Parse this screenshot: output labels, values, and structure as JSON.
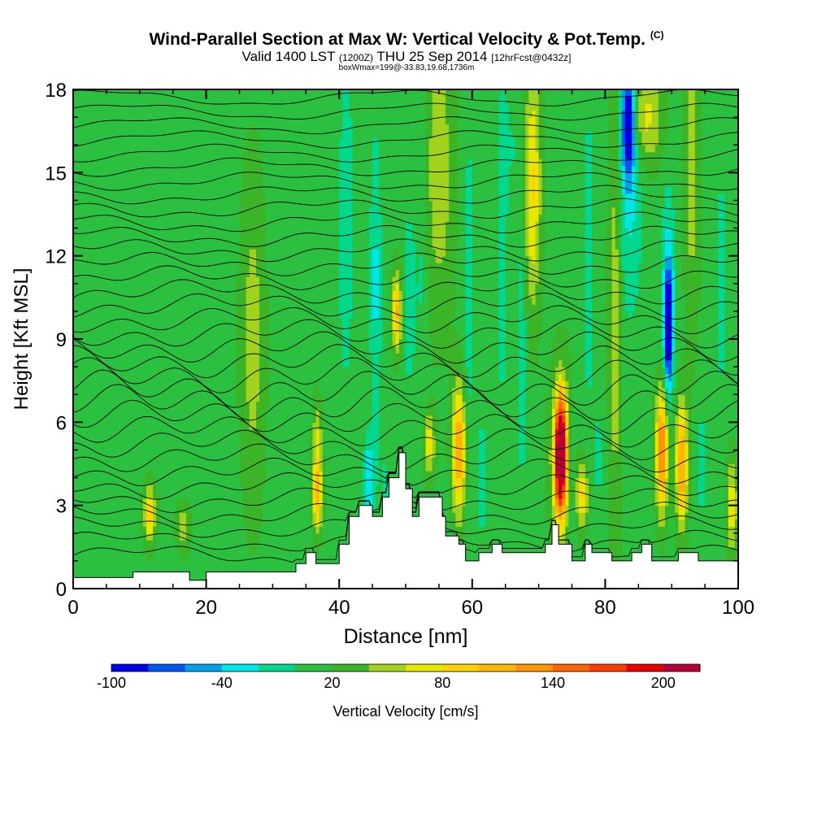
{
  "title": {
    "main": "Wind-Parallel Section at Max W: Vertical Velocity & Pot.Temp.",
    "main_suffix": "(C)",
    "valid_a": "Valid 1400 LST",
    "valid_b": "(1200Z)",
    "valid_c": "THU 25 Sep 2014",
    "valid_d": "[12hrFcst@0432z]",
    "box": "boxWmax=199@-33.83,19.68,1736m"
  },
  "chart_data": {
    "type": "heatmap",
    "xlabel": "Distance [nm]",
    "ylabel": "Height [Kft MSL]",
    "xlim": [
      0,
      100
    ],
    "ylim": [
      0,
      18
    ],
    "x_ticks": [
      0,
      20,
      40,
      60,
      80,
      100
    ],
    "y_ticks": [
      0,
      3,
      6,
      9,
      12,
      15,
      18
    ],
    "colorbar": {
      "label": "Vertical Velocity [cm/s]",
      "tick_labels": [
        "-100",
        "-40",
        "20",
        "80",
        "140",
        "200"
      ],
      "tick_values": [
        -100,
        -40,
        20,
        80,
        140,
        200
      ],
      "range": [
        -100,
        220
      ],
      "colors": [
        "#0000e6",
        "#0055f5",
        "#00a0f0",
        "#00e6e6",
        "#00d890",
        "#2cc040",
        "#3cb428",
        "#a0d21e",
        "#e6e600",
        "#ffd200",
        "#ffb400",
        "#ff9600",
        "#ff6400",
        "#ff3c00",
        "#e60000",
        "#b40032"
      ]
    },
    "background_w": 15,
    "terrain_profile": [
      {
        "x": 0,
        "h": 0.4
      },
      {
        "x": 9,
        "h": 0.4
      },
      {
        "x": 9,
        "h": 0.6
      },
      {
        "x": 17.5,
        "h": 0.6
      },
      {
        "x": 17.5,
        "h": 0.3
      },
      {
        "x": 20,
        "h": 0.3
      },
      {
        "x": 20,
        "h": 0.6
      },
      {
        "x": 33.5,
        "h": 0.6
      },
      {
        "x": 33.5,
        "h": 0.9
      },
      {
        "x": 35,
        "h": 0.9
      },
      {
        "x": 35,
        "h": 1.3
      },
      {
        "x": 36.5,
        "h": 1.3
      },
      {
        "x": 36.5,
        "h": 0.9
      },
      {
        "x": 40,
        "h": 0.9
      },
      {
        "x": 40,
        "h": 1.6
      },
      {
        "x": 41.5,
        "h": 1.6
      },
      {
        "x": 41.5,
        "h": 2.6
      },
      {
        "x": 43,
        "h": 2.6
      },
      {
        "x": 43,
        "h": 3.0
      },
      {
        "x": 45,
        "h": 3.0
      },
      {
        "x": 45,
        "h": 2.6
      },
      {
        "x": 46.5,
        "h": 2.6
      },
      {
        "x": 46.5,
        "h": 3.3
      },
      {
        "x": 47.5,
        "h": 3.3
      },
      {
        "x": 47.5,
        "h": 4.0
      },
      {
        "x": 49,
        "h": 4.0
      },
      {
        "x": 49,
        "h": 4.9
      },
      {
        "x": 50,
        "h": 4.9
      },
      {
        "x": 50,
        "h": 3.6
      },
      {
        "x": 51,
        "h": 3.6
      },
      {
        "x": 51,
        "h": 2.6
      },
      {
        "x": 52,
        "h": 2.6
      },
      {
        "x": 52,
        "h": 3.3
      },
      {
        "x": 55.5,
        "h": 3.3
      },
      {
        "x": 55.5,
        "h": 2.6
      },
      {
        "x": 56,
        "h": 2.6
      },
      {
        "x": 56,
        "h": 1.9
      },
      {
        "x": 58,
        "h": 1.9
      },
      {
        "x": 58,
        "h": 1.6
      },
      {
        "x": 59,
        "h": 1.6
      },
      {
        "x": 59,
        "h": 1.0
      },
      {
        "x": 61,
        "h": 1.0
      },
      {
        "x": 61,
        "h": 1.3
      },
      {
        "x": 63,
        "h": 1.3
      },
      {
        "x": 63,
        "h": 1.6
      },
      {
        "x": 64.5,
        "h": 1.6
      },
      {
        "x": 64.5,
        "h": 1.3
      },
      {
        "x": 71,
        "h": 1.3
      },
      {
        "x": 71,
        "h": 1.6
      },
      {
        "x": 72,
        "h": 1.6
      },
      {
        "x": 72,
        "h": 2.3
      },
      {
        "x": 73,
        "h": 2.3
      },
      {
        "x": 73,
        "h": 1.6
      },
      {
        "x": 75,
        "h": 1.6
      },
      {
        "x": 75,
        "h": 1.0
      },
      {
        "x": 77,
        "h": 1.0
      },
      {
        "x": 77,
        "h": 1.6
      },
      {
        "x": 78,
        "h": 1.6
      },
      {
        "x": 78,
        "h": 1.3
      },
      {
        "x": 81,
        "h": 1.3
      },
      {
        "x": 81,
        "h": 1.0
      },
      {
        "x": 84,
        "h": 1.0
      },
      {
        "x": 84,
        "h": 1.3
      },
      {
        "x": 85.5,
        "h": 1.3
      },
      {
        "x": 85.5,
        "h": 1.6
      },
      {
        "x": 87,
        "h": 1.6
      },
      {
        "x": 87,
        "h": 1.0
      },
      {
        "x": 91,
        "h": 1.0
      },
      {
        "x": 91,
        "h": 1.3
      },
      {
        "x": 94,
        "h": 1.3
      },
      {
        "x": 94,
        "h": 1.0
      },
      {
        "x": 100,
        "h": 1.0
      }
    ],
    "velocity_features": [
      {
        "x": 11.5,
        "y": 2.7,
        "sx": 0.6,
        "sy": 0.7,
        "w": 75
      },
      {
        "x": 16.5,
        "y": 2.2,
        "sx": 0.7,
        "sy": 0.6,
        "w": 35
      },
      {
        "x": 21.5,
        "y": 1.6,
        "sx": 1.5,
        "sy": 0.5,
        "w": -15
      },
      {
        "x": 27,
        "y": 9.0,
        "sx": 1.2,
        "sy": 4.0,
        "w": 35
      },
      {
        "x": 34.5,
        "y": 11.5,
        "sx": 0.9,
        "sy": 5.0,
        "w": -15
      },
      {
        "x": 36.7,
        "y": 3.4,
        "sx": 0.5,
        "sy": 0.9,
        "w": 95
      },
      {
        "x": 36.7,
        "y": 5.5,
        "sx": 0.5,
        "sy": 1.0,
        "w": 45
      },
      {
        "x": 38,
        "y": 9.5,
        "sx": 0.8,
        "sy": 3.5,
        "w": -5
      },
      {
        "x": 41,
        "y": 13.0,
        "sx": 0.8,
        "sy": 4.5,
        "w": -30
      },
      {
        "x": 43,
        "y": 15.5,
        "sx": 0.7,
        "sy": 2.5,
        "w": -10
      },
      {
        "x": 44.5,
        "y": 4.0,
        "sx": 0.6,
        "sy": 1.0,
        "w": -55
      },
      {
        "x": 47,
        "y": 3.5,
        "sx": 0.6,
        "sy": 1.2,
        "w": -20
      },
      {
        "x": 48.7,
        "y": 10.0,
        "sx": 0.5,
        "sy": 1.0,
        "w": 90
      },
      {
        "x": 45.5,
        "y": 11.0,
        "sx": 0.6,
        "sy": 4.0,
        "w": -40
      },
      {
        "x": 50.5,
        "y": 10.5,
        "sx": 0.8,
        "sy": 2.5,
        "w": -30
      },
      {
        "x": 52.5,
        "y": 13.0,
        "sx": 0.6,
        "sy": 4.5,
        "w": -20
      },
      {
        "x": 53.5,
        "y": 5.2,
        "sx": 0.6,
        "sy": 0.8,
        "w": 60
      },
      {
        "x": 55,
        "y": 15.0,
        "sx": 1.5,
        "sy": 3.5,
        "w": 40
      },
      {
        "x": 58,
        "y": 5.0,
        "sx": 0.7,
        "sy": 1.6,
        "w": 110
      },
      {
        "x": 59.5,
        "y": 11.0,
        "sx": 0.6,
        "sy": 5.0,
        "w": -25
      },
      {
        "x": 61.5,
        "y": 4.0,
        "sx": 0.6,
        "sy": 1.5,
        "w": -30
      },
      {
        "x": 64.5,
        "y": 12.0,
        "sx": 0.5,
        "sy": 5.0,
        "w": -25
      },
      {
        "x": 66,
        "y": 16.0,
        "sx": 1.2,
        "sy": 2.5,
        "w": -15
      },
      {
        "x": 67.5,
        "y": 9.0,
        "sx": 0.6,
        "sy": 5.0,
        "w": -25
      },
      {
        "x": 69,
        "y": 14.5,
        "sx": 0.9,
        "sy": 3.0,
        "w": 70
      },
      {
        "x": 73.3,
        "y": 4.8,
        "sx": 0.6,
        "sy": 1.4,
        "w": 240
      },
      {
        "x": 73.3,
        "y": 4.8,
        "sx": 1.1,
        "sy": 2.2,
        "w": 45
      },
      {
        "x": 75,
        "y": 3.5,
        "sx": 0.6,
        "sy": 1.5,
        "w": -20
      },
      {
        "x": 76.5,
        "y": 3.4,
        "sx": 0.7,
        "sy": 0.8,
        "w": 75
      },
      {
        "x": 77.5,
        "y": 12.0,
        "sx": 0.6,
        "sy": 5.0,
        "w": -25
      },
      {
        "x": 79,
        "y": 4.8,
        "sx": 0.6,
        "sy": 1.5,
        "w": -20
      },
      {
        "x": 81.5,
        "y": 11.0,
        "sx": 0.7,
        "sy": 6.0,
        "w": 45
      },
      {
        "x": 83.5,
        "y": 16.8,
        "sx": 0.7,
        "sy": 1.3,
        "w": -120
      },
      {
        "x": 83.5,
        "y": 14.5,
        "sx": 1.5,
        "sy": 3.5,
        "w": -40
      },
      {
        "x": 86,
        "y": 17.0,
        "sx": 1.8,
        "sy": 1.2,
        "w": 55
      },
      {
        "x": 88.5,
        "y": 5.0,
        "sx": 0.6,
        "sy": 1.5,
        "w": 130
      },
      {
        "x": 89.5,
        "y": 9.3,
        "sx": 0.4,
        "sy": 1.4,
        "w": -125
      },
      {
        "x": 89.5,
        "y": 11.0,
        "sx": 0.8,
        "sy": 2.5,
        "w": -45
      },
      {
        "x": 91.5,
        "y": 4.5,
        "sx": 0.6,
        "sy": 1.5,
        "w": 110
      },
      {
        "x": 94.5,
        "y": 4.5,
        "sx": 0.5,
        "sy": 1.5,
        "w": -30
      },
      {
        "x": 93,
        "y": 15.0,
        "sx": 0.8,
        "sy": 4.0,
        "w": 35
      },
      {
        "x": 99,
        "y": 3.0,
        "sx": 0.6,
        "sy": 1.2,
        "w": 60
      },
      {
        "x": 97.5,
        "y": 11.0,
        "sx": 0.6,
        "sy": 5.0,
        "w": -20
      }
    ],
    "isentrope_count": 34
  }
}
